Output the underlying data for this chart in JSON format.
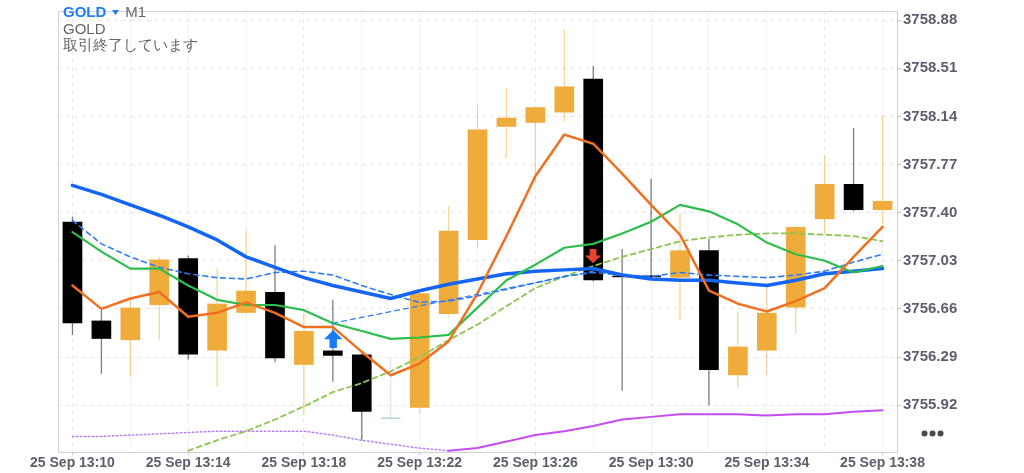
{
  "chart_data": {
    "type": "candlestick",
    "title": "GOLD",
    "subtitle": "M1",
    "annotations": [
      "GOLD",
      "取引終了しています"
    ],
    "categories": [
      "25 Sep 13:10",
      null,
      null,
      null,
      "25 Sep 13:14",
      null,
      null,
      null,
      "25 Sep 13:18",
      null,
      null,
      null,
      "25 Sep 13:22",
      null,
      null,
      null,
      "25 Sep 13:26",
      null,
      null,
      null,
      "25 Sep 13:30",
      null,
      null,
      null,
      "25 Sep 13:34",
      null,
      null,
      null,
      "25 Sep 13:38"
    ],
    "ylim": [
      3755.56,
      3758.95
    ],
    "yticks": [
      3755.92,
      3756.29,
      3756.66,
      3757.03,
      {
        "value": 3757.4,
        "label": "3757.40"
      },
      3757.77,
      3758.14,
      3758.51,
      3758.88
    ],
    "grid": true,
    "ohlc": [
      [
        3757.33,
        3757.37,
        3756.46,
        3756.55
      ],
      [
        3756.57,
        3756.66,
        3756.16,
        3756.43
      ],
      [
        3756.42,
        3756.73,
        3756.14,
        3756.67
      ],
      [
        3756.69,
        3757.06,
        3756.42,
        3757.04
      ],
      [
        3757.05,
        3757.07,
        3756.27,
        3756.31
      ],
      [
        3756.34,
        3756.97,
        3756.06,
        3756.7
      ],
      [
        3756.63,
        3757.26,
        3756.62,
        3756.8
      ],
      [
        3756.79,
        3757.15,
        3756.25,
        3756.28
      ],
      [
        3756.23,
        3756.63,
        3755.85,
        3756.49
      ],
      [
        3756.34,
        3756.73,
        3756.1,
        3756.3
      ],
      [
        3756.31,
        3756.32,
        3755.65,
        3755.87
      ],
      [
        3755.82,
        3756.29,
        3755.81,
        3755.82
      ],
      [
        3755.9,
        3756.79,
        3755.86,
        3756.78
      ],
      [
        3756.62,
        3757.45,
        3756.6,
        3757.26
      ],
      [
        3757.19,
        3758.23,
        3757.13,
        3758.04
      ],
      [
        3758.06,
        3758.36,
        3757.82,
        3758.13
      ],
      [
        3758.09,
        3758.22,
        3757.63,
        3758.21
      ],
      [
        3758.17,
        3758.81,
        3758.1,
        3758.37
      ],
      [
        3758.43,
        3758.53,
        3756.87,
        3756.88
      ],
      [
        3756.91,
        3757.12,
        3756.03,
        3756.91
      ],
      [
        3756.91,
        3757.66,
        3756.9,
        3756.91
      ],
      [
        3756.9,
        3757.4,
        3756.57,
        3757.11
      ],
      [
        3757.11,
        3757.2,
        3755.92,
        3756.19
      ],
      [
        3756.15,
        3756.64,
        3756.05,
        3756.37
      ],
      [
        3756.34,
        3756.83,
        3756.15,
        3756.63
      ],
      [
        3756.67,
        3757.3,
        3756.47,
        3757.29
      ],
      [
        3757.35,
        3757.84,
        3757.23,
        3757.62
      ],
      [
        3757.62,
        3758.05,
        3757.41,
        3757.42
      ],
      [
        3757.42,
        3758.15,
        3757.31,
        3757.49
      ]
    ],
    "colors": [
      "#000000",
      "#000000",
      "#f0ac3b",
      "#f0ac3b",
      "#000000",
      "#f0ac3b",
      "#f0ac3b",
      "#000000",
      "#f0ac3b",
      "#000000",
      "#000000",
      "#b7dccf",
      "#f0ac3b",
      "#f0ac3b",
      "#f0ac3b",
      "#f0ac3b",
      "#f0ac3b",
      "#f0ac3b",
      "#000000",
      "#000000",
      "#000000",
      "#f0ac3b",
      "#000000",
      "#f0ac3b",
      "#f0ac3b",
      "#f0ac3b",
      "#f0ac3b",
      "#000000",
      "#f0ac3b"
    ],
    "series": [
      {
        "type": "line",
        "color": "#b77ef5",
        "line_style": "dotted",
        "values": [
          3755.68,
          3755.68,
          3755.69,
          3755.7,
          3755.71,
          3755.72,
          3755.72,
          3755.72,
          3755.72,
          3755.69,
          3755.65,
          3755.62,
          3755.59,
          3755.57,
          null,
          null,
          null,
          null,
          null,
          null,
          null,
          null,
          null,
          null,
          null,
          null,
          null,
          null,
          null
        ]
      },
      {
        "type": "line",
        "color": "#c64cf0",
        "line_style": "solid",
        "values": [
          null,
          null,
          null,
          null,
          null,
          null,
          null,
          null,
          null,
          null,
          null,
          null,
          null,
          3755.57,
          3755.59,
          3755.64,
          3755.69,
          3755.72,
          3755.76,
          3755.81,
          3755.83,
          3755.85,
          3755.85,
          3755.85,
          3755.84,
          3755.85,
          3755.85,
          3755.87,
          3755.88
        ]
      },
      {
        "type": "line",
        "color": "#8bc653",
        "line_style": "dashed",
        "values": [
          null,
          null,
          null,
          null,
          3755.57,
          3755.65,
          3755.72,
          3755.81,
          3755.91,
          3756.02,
          3756.09,
          3756.18,
          3756.29,
          3756.42,
          3756.54,
          3756.68,
          3756.82,
          3756.91,
          3756.99,
          3757.06,
          3757.12,
          3757.18,
          3757.21,
          3757.23,
          3757.24,
          3757.24,
          3757.23,
          3757.22,
          3757.18
        ]
      },
      {
        "type": "line",
        "color": "#2f7df6",
        "line_style": "dashed",
        "values": [
          3757.34,
          3757.16,
          3757.06,
          3756.98,
          3756.93,
          3756.9,
          3756.89,
          3756.94,
          3756.95,
          3756.92,
          3756.84,
          3756.77,
          3756.71,
          3756.72,
          3756.76,
          3756.81,
          3756.86,
          3756.91,
          3756.94,
          3756.92,
          3756.91,
          3756.94,
          3756.92,
          3756.91,
          3756.9,
          3756.92,
          3756.95,
          3757.02,
          3757.08
        ]
      },
      {
        "type": "line",
        "color": "#1565f5",
        "line_style": "solid",
        "values": [
          3757.61,
          3757.54,
          3757.46,
          3757.38,
          3757.29,
          3757.19,
          3757.06,
          3756.98,
          3756.9,
          3756.84,
          3756.79,
          3756.74,
          3756.8,
          3756.85,
          3756.89,
          3756.93,
          3756.95,
          3756.96,
          3756.97,
          3756.92,
          3756.89,
          3756.88,
          3756.88,
          3756.86,
          3756.84,
          3756.88,
          3756.93,
          3756.95,
          3756.97
        ]
      },
      {
        "type": "line",
        "color": "#2dbd4b",
        "line_style": "solid",
        "values": [
          3757.25,
          3757.1,
          3756.97,
          3756.97,
          3756.84,
          3756.73,
          3756.69,
          3756.69,
          3756.65,
          3756.55,
          3756.49,
          3756.43,
          3756.44,
          3756.46,
          3756.67,
          3756.88,
          3757.0,
          3757.13,
          3757.16,
          3757.24,
          3757.33,
          3757.46,
          3757.41,
          3757.31,
          3757.17,
          3757.08,
          3757.03,
          3756.94,
          3756.99
        ]
      },
      {
        "type": "line",
        "color": "#f07022",
        "line_style": "solid",
        "values": [
          3756.84,
          3756.66,
          3756.74,
          3756.79,
          3756.6,
          3756.63,
          3756.71,
          3756.63,
          3756.52,
          3756.52,
          3756.33,
          3756.15,
          3756.24,
          3756.41,
          3756.78,
          3757.22,
          3757.68,
          3758.0,
          3757.93,
          3757.7,
          3757.46,
          3757.23,
          3756.8,
          3756.7,
          3756.64,
          3756.72,
          3756.82,
          3757.06,
          3757.29
        ]
      },
      {
        "type": "line",
        "color": "#2f7df6",
        "line_style": "dashed",
        "values": [
          null,
          null,
          null,
          null,
          null,
          null,
          null,
          null,
          null,
          3756.55,
          null,
          null,
          null,
          null,
          null,
          null,
          null,
          null,
          3756.95,
          null,
          null,
          null,
          null,
          null,
          null,
          null,
          null,
          null,
          null
        ]
      }
    ]
  }
}
